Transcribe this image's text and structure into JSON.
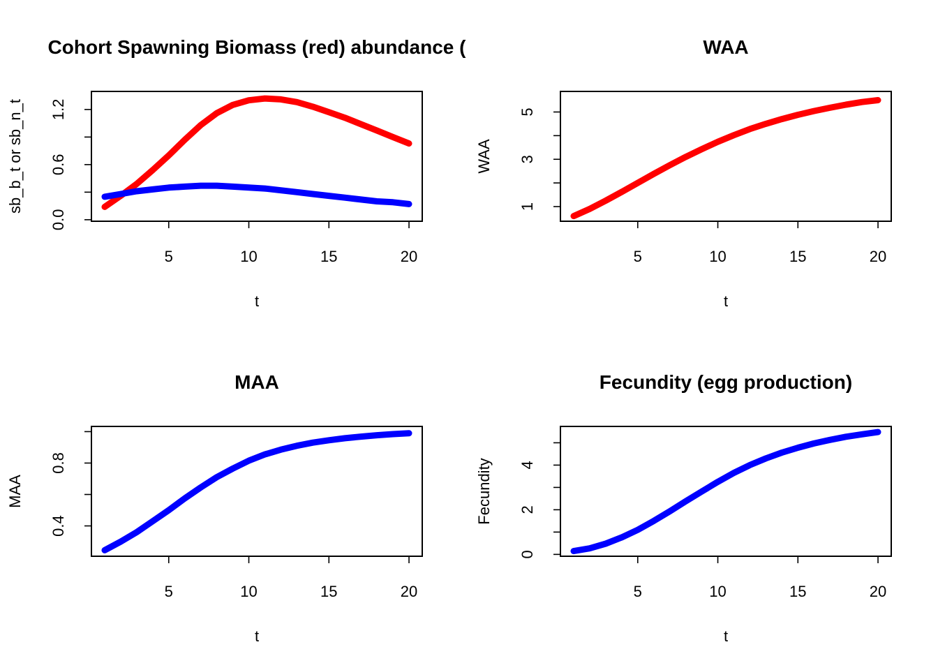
{
  "colors": {
    "red": "#ff0000",
    "blue": "#0000ff"
  },
  "chart_data": [
    {
      "type": "line",
      "title": "Cohort Spawning Biomass (red) abundance (",
      "xlabel": "t",
      "ylabel": "sb_b_t or sb_n_t",
      "xlim": [
        1,
        20
      ],
      "ylim": [
        0.04,
        1.34
      ],
      "x_ticks": [
        5,
        10,
        15,
        20
      ],
      "y_ticks": [
        0.0,
        0.3,
        0.6,
        0.9,
        1.2
      ],
      "y_tick_labels": [
        "0.0",
        "",
        "0.6",
        "",
        "1.2"
      ],
      "x": [
        1,
        2,
        3,
        4,
        5,
        6,
        7,
        8,
        9,
        10,
        11,
        12,
        13,
        14,
        15,
        16,
        17,
        18,
        19,
        20
      ],
      "series": [
        {
          "color": "#ff0000",
          "values": [
            0.14,
            0.26,
            0.39,
            0.54,
            0.7,
            0.87,
            1.03,
            1.16,
            1.25,
            1.3,
            1.32,
            1.31,
            1.28,
            1.23,
            1.17,
            1.11,
            1.04,
            0.97,
            0.9,
            0.83
          ]
        },
        {
          "color": "#0000ff",
          "values": [
            0.25,
            0.28,
            0.31,
            0.33,
            0.35,
            0.36,
            0.37,
            0.37,
            0.36,
            0.35,
            0.34,
            0.32,
            0.3,
            0.28,
            0.26,
            0.24,
            0.22,
            0.2,
            0.19,
            0.17
          ]
        }
      ]
    },
    {
      "type": "line",
      "title": "WAA",
      "xlabel": "t",
      "ylabel": "WAA",
      "xlim": [
        1,
        20
      ],
      "ylim": [
        0.6,
        5.65
      ],
      "x_ticks": [
        5,
        10,
        15,
        20
      ],
      "y_ticks": [
        1,
        2,
        3,
        4,
        5
      ],
      "y_tick_labels": [
        "1",
        "",
        "3",
        "",
        "5"
      ],
      "x": [
        1,
        2,
        3,
        4,
        5,
        6,
        7,
        8,
        9,
        10,
        11,
        12,
        13,
        14,
        15,
        16,
        17,
        18,
        19,
        20
      ],
      "series": [
        {
          "color": "#ff0000",
          "values": [
            0.6,
            0.9,
            1.25,
            1.62,
            2.0,
            2.38,
            2.75,
            3.1,
            3.43,
            3.74,
            4.02,
            4.28,
            4.5,
            4.7,
            4.88,
            5.04,
            5.18,
            5.31,
            5.42,
            5.5
          ]
        }
      ]
    },
    {
      "type": "line",
      "title": "MAA",
      "xlabel": "t",
      "ylabel": "MAA",
      "xlim": [
        1,
        20
      ],
      "ylim": [
        0.24,
        1.0
      ],
      "x_ticks": [
        5,
        10,
        15,
        20
      ],
      "y_ticks": [
        0.4,
        0.6,
        0.8,
        1.0
      ],
      "y_tick_labels": [
        "0.4",
        "",
        "0.8",
        ""
      ],
      "x": [
        1,
        2,
        3,
        4,
        5,
        6,
        7,
        8,
        9,
        10,
        11,
        12,
        13,
        14,
        15,
        16,
        17,
        18,
        19,
        20
      ],
      "series": [
        {
          "color": "#0000ff",
          "values": [
            0.245,
            0.3,
            0.36,
            0.43,
            0.5,
            0.575,
            0.645,
            0.71,
            0.765,
            0.815,
            0.855,
            0.885,
            0.91,
            0.93,
            0.945,
            0.958,
            0.968,
            0.977,
            0.984,
            0.99
          ]
        }
      ]
    },
    {
      "type": "line",
      "title": "Fecundity (egg production)",
      "xlabel": "t",
      "ylabel": "Fecundity",
      "xlim": [
        1,
        20
      ],
      "ylim": [
        0.15,
        5.5
      ],
      "x_ticks": [
        5,
        10,
        15,
        20
      ],
      "y_ticks": [
        0,
        1,
        2,
        3,
        4,
        5
      ],
      "y_tick_labels": [
        "0",
        "",
        "2",
        "",
        "4",
        ""
      ],
      "x": [
        1,
        2,
        3,
        4,
        5,
        6,
        7,
        8,
        9,
        10,
        11,
        12,
        13,
        14,
        15,
        16,
        17,
        18,
        19,
        20
      ],
      "series": [
        {
          "color": "#0000ff",
          "values": [
            0.15,
            0.27,
            0.48,
            0.76,
            1.1,
            1.5,
            1.93,
            2.38,
            2.82,
            3.25,
            3.65,
            4.0,
            4.3,
            4.56,
            4.78,
            4.97,
            5.13,
            5.27,
            5.38,
            5.48
          ]
        }
      ]
    }
  ]
}
